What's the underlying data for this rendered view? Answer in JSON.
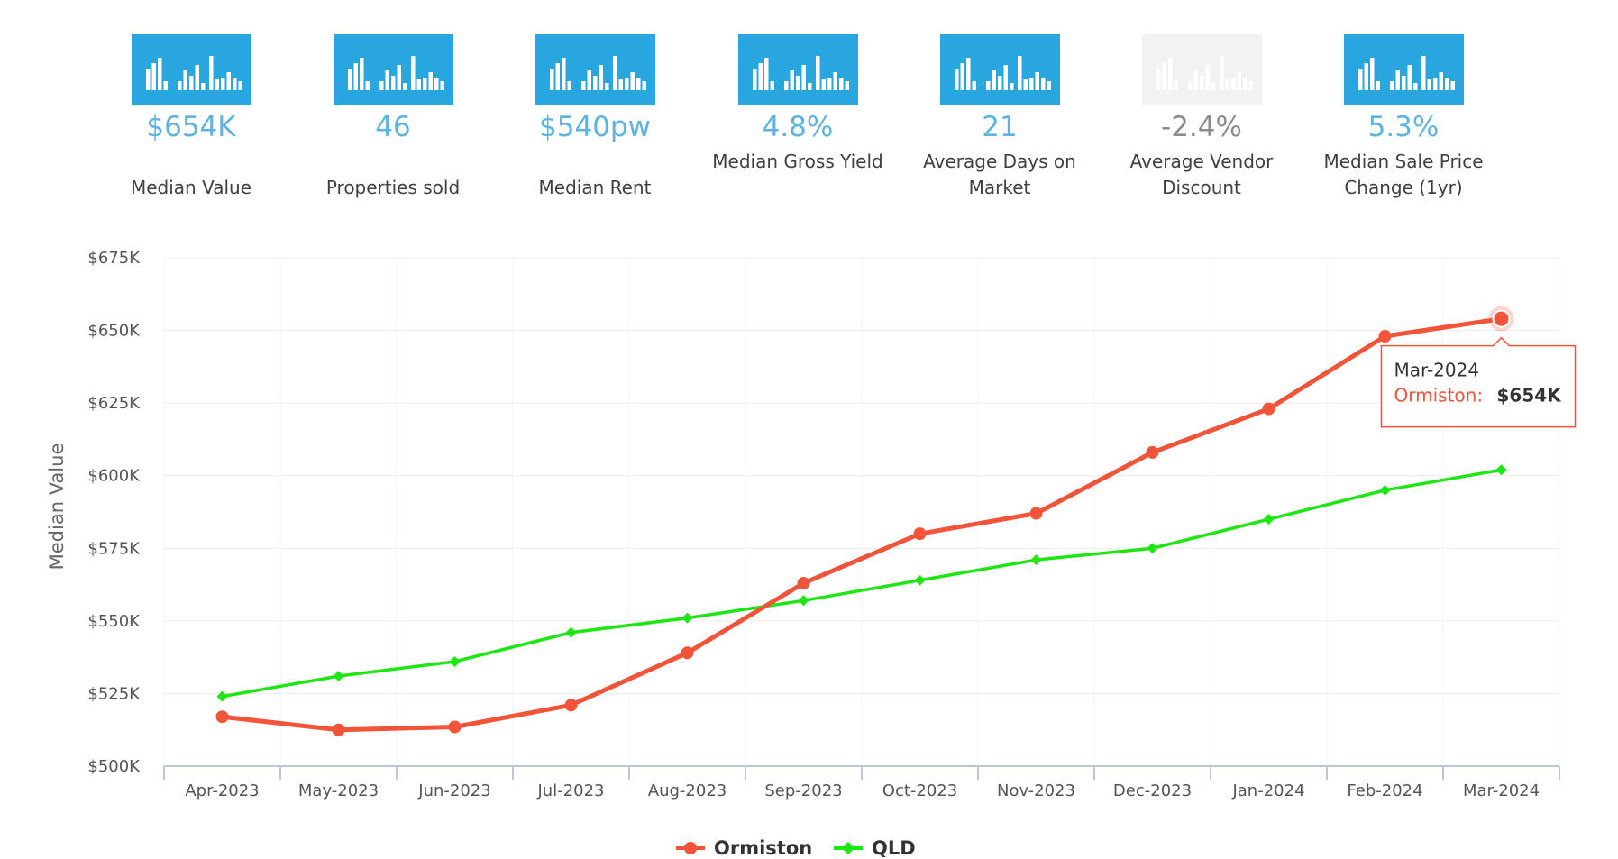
{
  "tiles": [
    {
      "value": "$654K",
      "label": "Median Value",
      "disabled": false
    },
    {
      "value": "46",
      "label": "Properties sold",
      "disabled": false
    },
    {
      "value": "$540pw",
      "label": "Median Rent",
      "disabled": false
    },
    {
      "value": "4.8%",
      "label": "Median Gross Yield",
      "disabled": false
    },
    {
      "value": "21",
      "label": "Average Days on Market",
      "disabled": false
    },
    {
      "value": "-2.4%",
      "label": "Average Vendor Discount",
      "disabled": true
    },
    {
      "value": "5.3%",
      "label": "Median Sale Price Change (1yr)",
      "disabled": false
    }
  ],
  "colors": {
    "tile_bg": "#2aa6de",
    "tile_disabled_bg": "#f2f2f2",
    "value_text": "#5fb3e0",
    "ormiston": "#f15438",
    "qld": "#1ee612"
  },
  "icons": {
    "tile": "bar-chart-icon"
  },
  "chart_data": {
    "type": "line",
    "title": "",
    "xlabel": "",
    "ylabel": "Median Value",
    "categories": [
      "Apr-2023",
      "May-2023",
      "Jun-2023",
      "Jul-2023",
      "Aug-2023",
      "Sep-2023",
      "Oct-2023",
      "Nov-2023",
      "Dec-2023",
      "Jan-2024",
      "Feb-2024",
      "Mar-2024"
    ],
    "ylim": [
      500000,
      675000
    ],
    "yticks": [
      500000,
      525000,
      550000,
      575000,
      600000,
      625000,
      650000,
      675000
    ],
    "ytick_labels": [
      "$500K",
      "$525K",
      "$550K",
      "$575K",
      "$600K",
      "$625K",
      "$650K",
      "$675K"
    ],
    "grid": true,
    "legend_position": "bottom-center",
    "series": [
      {
        "name": "Ormiston",
        "color": "#f15438",
        "marker": "circle",
        "values": [
          517000,
          512500,
          513500,
          521000,
          539000,
          563000,
          580000,
          587000,
          608000,
          623000,
          648000,
          654000
        ]
      },
      {
        "name": "QLD",
        "color": "#1ee612",
        "marker": "diamond",
        "values": [
          524000,
          531000,
          536000,
          546000,
          551000,
          557000,
          564000,
          571000,
          575000,
          585000,
          595000,
          602000
        ]
      }
    ],
    "tooltip": {
      "category": "Mar-2024",
      "series": "Ormiston",
      "value": "$654K",
      "series_label": "Ormiston:"
    }
  }
}
